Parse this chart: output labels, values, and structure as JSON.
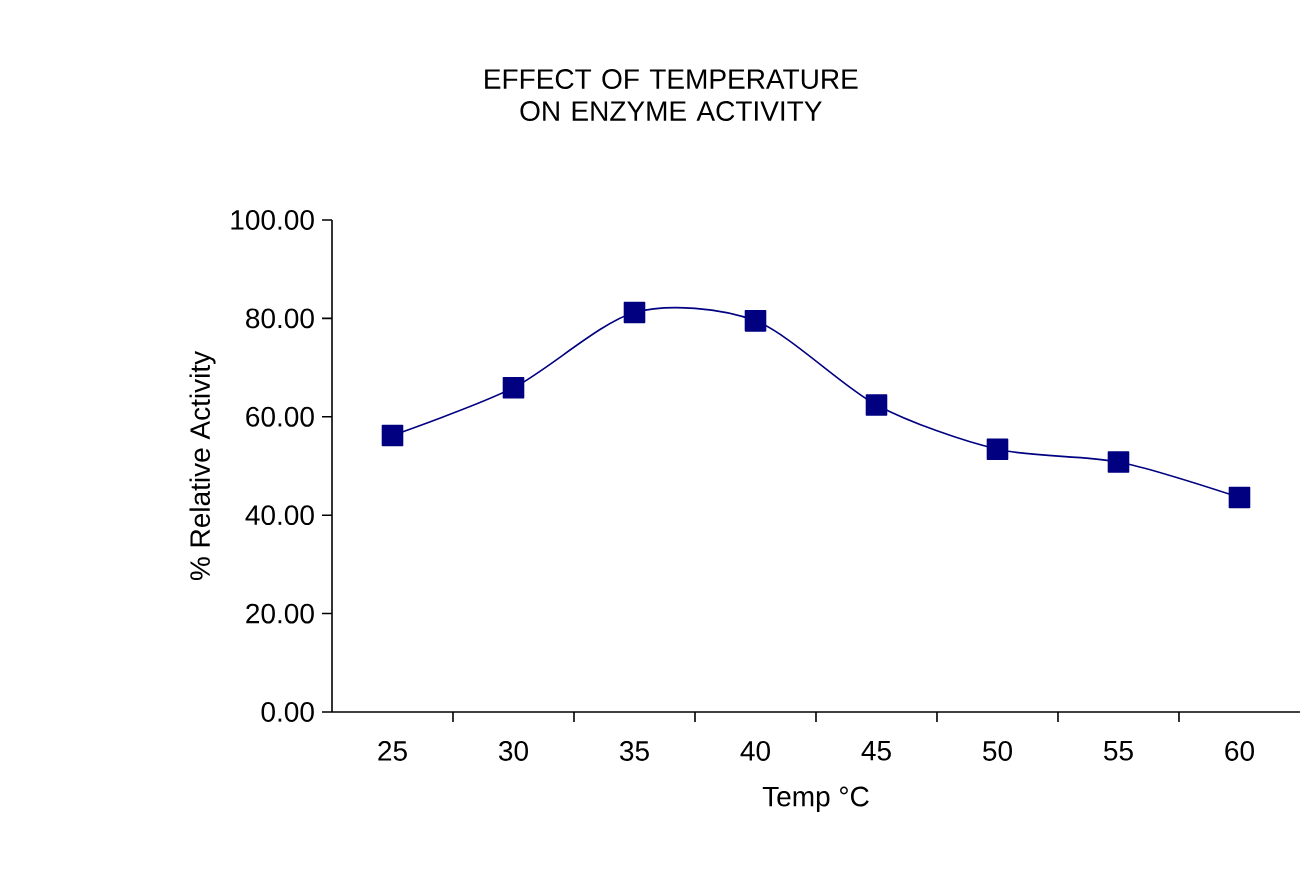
{
  "chart_data": {
    "type": "line",
    "title": "EFFECT OF TEMPERATURE ON ENZYME ACTIVITY",
    "xlabel": "Temp °C",
    "ylabel": "% Relative Activity",
    "categories": [
      "25",
      "30",
      "35",
      "40",
      "45",
      "50",
      "55",
      "60"
    ],
    "series": [
      {
        "color": "#000080",
        "values": [
          56.2,
          65.9,
          81.2,
          79.5,
          62.4,
          53.4,
          50.8,
          43.6
        ]
      }
    ],
    "ylim": [
      0,
      100
    ],
    "yticks": [
      {
        "value": 0,
        "label": "0.00"
      },
      {
        "value": 20,
        "label": "20.00"
      },
      {
        "value": 40,
        "label": "40.00"
      },
      {
        "value": 60,
        "label": "60.00"
      },
      {
        "value": 80,
        "label": "80.00"
      },
      {
        "value": 100,
        "label": "100.00"
      }
    ],
    "marker": "square",
    "grid": false
  }
}
